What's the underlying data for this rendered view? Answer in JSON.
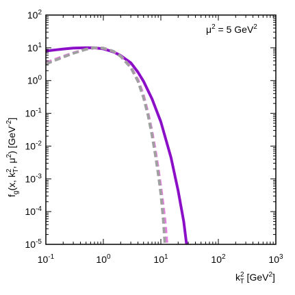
{
  "chart_data": {
    "type": "line",
    "annotation": {
      "base": "μ",
      "sup": "2",
      "mid": " = 5 GeV",
      "sup2": "2"
    },
    "xlabel": {
      "base": "k",
      "sup": "2",
      "sub": "T",
      "unit_open": " [GeV",
      "unit_sup": "2",
      "unit_close": "]"
    },
    "ylabel": {
      "p1": "f",
      "p1sub": "g",
      "p2": "(x, k",
      "p2sup": "2",
      "p2sub": "T",
      "p3": ", μ",
      "p3sup": "2",
      "p4": ") [GeV",
      "p4sup": "-2",
      "p5": "]"
    },
    "x_scale": "log",
    "y_scale": "log",
    "xlim": [
      0.1,
      1000
    ],
    "ylim": [
      1e-05,
      100
    ],
    "x_ticks": [
      {
        "value": 0.1,
        "base": "10",
        "exp": "-1"
      },
      {
        "value": 1,
        "base": "10",
        "exp": "0"
      },
      {
        "value": 10,
        "base": "10",
        "exp": "1"
      },
      {
        "value": 100,
        "base": "10",
        "exp": "2"
      },
      {
        "value": 1000,
        "base": "10",
        "exp": "3"
      }
    ],
    "y_ticks": [
      {
        "value": 100,
        "base": "10",
        "exp": "2"
      },
      {
        "value": 10,
        "base": "10",
        "exp": "1"
      },
      {
        "value": 1,
        "base": "10",
        "exp": "0"
      },
      {
        "value": 0.1,
        "base": "10",
        "exp": "-1"
      },
      {
        "value": 0.01,
        "base": "10",
        "exp": "-2"
      },
      {
        "value": 0.001,
        "base": "10",
        "exp": "-3"
      },
      {
        "value": 0.0001,
        "base": "10",
        "exp": "-4"
      },
      {
        "value": 1e-05,
        "base": "10",
        "exp": "-5"
      }
    ],
    "series": [
      {
        "style": "solid",
        "color": "#8c0fc8",
        "width": 4,
        "x": [
          0.1,
          0.15,
          0.2,
          0.3,
          0.5,
          0.7,
          1.0,
          1.5,
          2.0,
          3.0,
          4.0,
          5.0,
          7.0,
          10.0,
          15.0,
          20.0,
          25.0,
          28.0
        ],
        "y": [
          8,
          8.7,
          9.2,
          9.8,
          10.1,
          10,
          9.3,
          7.5,
          5.8,
          3.5,
          1.8,
          0.95,
          0.28,
          0.055,
          0.0045,
          0.00043,
          5e-05,
          1e-05
        ]
      },
      {
        "style": "dashed",
        "color": "#e680e0",
        "width": 4,
        "x": [
          0.1,
          0.2,
          0.3,
          0.5,
          0.7,
          1.0,
          1.5,
          2.0,
          3.0,
          4.0,
          5.0,
          6.0,
          7.0,
          8.0,
          9.0,
          10.0,
          11.0,
          12.0,
          12.8
        ],
        "y": [
          3.5,
          5.5,
          7.0,
          9.0,
          9.9,
          9.7,
          7.8,
          5.6,
          2.6,
          1.05,
          0.35,
          0.1,
          0.028,
          0.0075,
          0.002,
          0.00055,
          0.00015,
          4e-05,
          1e-05
        ]
      },
      {
        "style": "dashed",
        "color": "#a0a0a0",
        "width": 4,
        "x": [
          0.1,
          0.2,
          0.3,
          0.5,
          0.7,
          1.0,
          1.5,
          2.0,
          3.0,
          4.0,
          5.0,
          6.0,
          7.0,
          8.0,
          9.0,
          10.0,
          11.0,
          11.8
        ],
        "y": [
          3.2,
          5.2,
          6.8,
          9.0,
          10.1,
          9.8,
          7.8,
          5.5,
          2.5,
          0.95,
          0.3,
          0.085,
          0.022,
          0.0055,
          0.0014,
          0.00035,
          6e-05,
          1e-05
        ]
      }
    ]
  }
}
